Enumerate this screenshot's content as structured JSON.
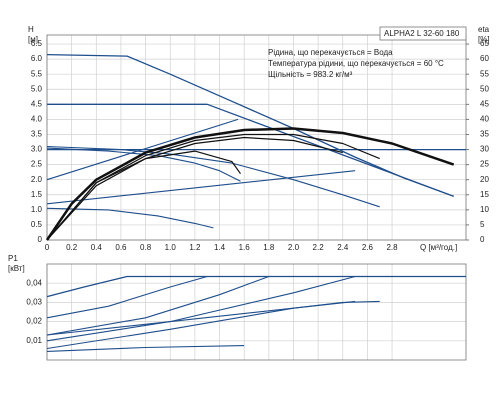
{
  "chart_data": [
    {
      "type": "line",
      "ylabel": [
        "H",
        "[м]"
      ],
      "y2label": [
        "eta",
        "[%]"
      ],
      "xlabel": "Q [м³/год.]",
      "title": "ALPHA2 L 32-60 180",
      "annotations": [
        "Рідина, що перекачується = Вода",
        "Температура рідини, що перекачується = 60 °C",
        "Щільність = 983.2 кг/м³"
      ],
      "xlim": [
        0,
        3.4
      ],
      "xticks": [
        0,
        0.2,
        0.4,
        0.6,
        0.8,
        {
          "value": 1,
          "label": "1.0"
        },
        1.2,
        1.4,
        1.6,
        1.8,
        {
          "value": 2,
          "label": "2.0"
        },
        2.2,
        2.4,
        2.6,
        2.8
      ],
      "ylim": [
        0,
        6.8
      ],
      "yticks": [
        0,
        0.5,
        {
          "value": 1,
          "label": "1.0"
        },
        1.5,
        {
          "value": 2,
          "label": "2.0"
        },
        2.5,
        {
          "value": 3,
          "label": "3.0"
        },
        3.5,
        {
          "value": 4,
          "label": "4.0"
        },
        4.5,
        {
          "value": 5,
          "label": "5.0"
        },
        5.5,
        {
          "value": 6,
          "label": "6.0"
        },
        6.5
      ],
      "y2lim": [
        0,
        68
      ],
      "y2ticks": [
        0,
        5,
        10,
        15,
        20,
        25,
        30,
        35,
        40,
        45,
        50,
        55,
        60,
        65
      ],
      "grid": true,
      "series": [
        {
          "color": "#1f4e8c",
          "line_width": 1.3,
          "x": [
            0,
            0.65,
            1.0,
            1.5,
            2.0,
            2.5,
            2.9,
            3.3
          ],
          "values": [
            6.15,
            6.1,
            5.5,
            4.6,
            3.7,
            2.75,
            2.05,
            1.45
          ]
        },
        {
          "color": "#1f4e8c",
          "line_width": 1.3,
          "x": [
            0,
            1.3,
            3.3
          ],
          "values": [
            4.5,
            4.5,
            1.45
          ]
        },
        {
          "color": "#1f4e8c",
          "line_width": 1.3,
          "x": [
            0,
            3.4
          ],
          "values": [
            3.0,
            3.0
          ]
        },
        {
          "color": "#1f4e8c",
          "line_width": 1.1,
          "x": [
            0,
            0.6,
            1.0,
            1.5,
            2.0,
            2.4,
            2.7
          ],
          "values": [
            3.1,
            3.0,
            2.85,
            2.55,
            2.0,
            1.5,
            1.1
          ]
        },
        {
          "color": "#1f4e8c",
          "line_width": 1.1,
          "x": [
            0,
            0.5,
            0.9,
            1.2,
            1.4,
            1.57
          ],
          "values": [
            3.05,
            2.95,
            2.8,
            2.55,
            2.3,
            1.95
          ]
        },
        {
          "color": "#1f4e8c",
          "line_width": 1.1,
          "x": [
            0,
            1.55
          ],
          "values": [
            2.0,
            4.0
          ]
        },
        {
          "color": "#1f4e8c",
          "line_width": 1.1,
          "x": [
            0,
            2.5
          ],
          "values": [
            1.2,
            2.3
          ]
        },
        {
          "color": "#1f4e8c",
          "line_width": 1.1,
          "x": [
            0,
            0.5,
            0.9,
            1.2,
            1.35
          ],
          "values": [
            1.05,
            1.0,
            0.8,
            0.55,
            0.4
          ]
        },
        {
          "color": "#111111",
          "line_width": 2.5,
          "axis": "y2",
          "x": [
            0,
            0.2,
            0.4,
            0.8,
            1.2,
            1.6,
            2.0,
            2.4,
            2.8,
            3.3
          ],
          "values": [
            0,
            12,
            20,
            29,
            34,
            36.5,
            37,
            35.5,
            32,
            25
          ]
        },
        {
          "color": "#111111",
          "line_width": 1.2,
          "axis": "y2",
          "x": [
            0,
            0.4,
            0.8,
            1.2,
            1.6,
            2.0,
            2.4,
            2.7
          ],
          "values": [
            0,
            19,
            28,
            33,
            35,
            35,
            32,
            27
          ]
        },
        {
          "color": "#111111",
          "line_width": 1.2,
          "axis": "y2",
          "x": [
            0,
            0.4,
            0.8,
            1.2,
            1.6,
            2.0,
            2.4
          ],
          "values": [
            0,
            18,
            27,
            32,
            34,
            33,
            29
          ]
        },
        {
          "color": "#111111",
          "line_width": 1.2,
          "axis": "y2",
          "x": [
            0,
            0.4,
            0.8,
            1.2,
            1.5,
            1.57
          ],
          "values": [
            0,
            19,
            27,
            29.5,
            26,
            22
          ]
        }
      ]
    },
    {
      "type": "line",
      "ylabel": [
        "P1",
        "[кВт]"
      ],
      "xlim": [
        0,
        3.4
      ],
      "xticks": [
        0,
        0.2,
        0.4,
        0.6,
        0.8,
        1,
        1.2,
        1.4,
        1.6,
        1.8,
        2,
        2.2,
        2.4,
        2.6,
        2.8
      ],
      "ylim": [
        0,
        0.05
      ],
      "yticks": [
        {
          "value": 0.01,
          "label": "0,01"
        },
        {
          "value": 0.02,
          "label": "0,02"
        },
        {
          "value": 0.03,
          "label": "0,03"
        },
        {
          "value": 0.04,
          "label": "0,04"
        }
      ],
      "grid": true,
      "series": [
        {
          "color": "#1f4e8c",
          "line_width": 1.3,
          "x": [
            0,
            0.3,
            0.65,
            3.4
          ],
          "values": [
            0.033,
            0.038,
            0.0435,
            0.0435
          ]
        },
        {
          "color": "#1f4e8c",
          "line_width": 1.1,
          "x": [
            0,
            0.5,
            1.0,
            1.3,
            3.4
          ],
          "values": [
            0.022,
            0.028,
            0.038,
            0.0435,
            0.0435
          ]
        },
        {
          "color": "#1f4e8c",
          "line_width": 1.1,
          "x": [
            0,
            0.8,
            1.4,
            1.8,
            3.4
          ],
          "values": [
            0.013,
            0.022,
            0.034,
            0.0435,
            0.0435
          ]
        },
        {
          "color": "#1f4e8c",
          "line_width": 1.1,
          "x": [
            0,
            1.0,
            2.0,
            2.5,
            3.4
          ],
          "values": [
            0.01,
            0.02,
            0.035,
            0.0435,
            0.0435
          ]
        },
        {
          "color": "#1f4e8c",
          "line_width": 1.1,
          "x": [
            0,
            1.0,
            2.0,
            2.4,
            2.7
          ],
          "values": [
            0.006,
            0.016,
            0.027,
            0.03,
            0.0305
          ]
        },
        {
          "color": "#1f4e8c",
          "line_width": 1.1,
          "x": [
            0,
            2.5
          ],
          "values": [
            0.013,
            0.0305
          ]
        },
        {
          "color": "#1f4e8c",
          "line_width": 1.1,
          "x": [
            0,
            0.8,
            1.6
          ],
          "values": [
            0.0045,
            0.0065,
            0.0075
          ]
        }
      ]
    }
  ]
}
